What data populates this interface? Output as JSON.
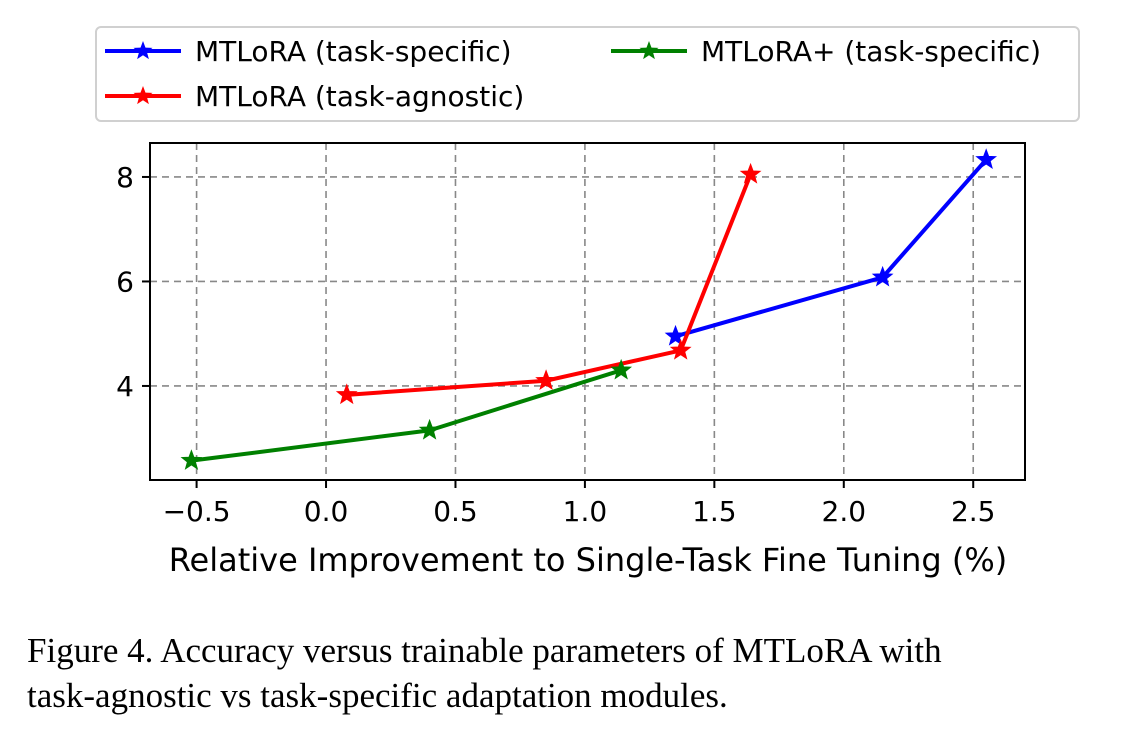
{
  "chart_data": {
    "type": "line",
    "xlabel": "Relative Improvement to Single-Task Fine Tuning (%)",
    "ylabel": "",
    "xlim": [
      -0.68,
      2.7
    ],
    "ylim": [
      2.2,
      8.65
    ],
    "xticks": [
      -0.5,
      0.0,
      0.5,
      1.0,
      1.5,
      2.0,
      2.5
    ],
    "xtick_labels": [
      "−0.5",
      "0.0",
      "0.5",
      "1.0",
      "1.5",
      "2.0",
      "2.5"
    ],
    "yticks": [
      4,
      6,
      8
    ],
    "ytick_labels": [
      "4",
      "6",
      "8"
    ],
    "grid": true,
    "legend_position": "top",
    "series": [
      {
        "name": "MTLoRA (task-specific)",
        "color": "#0000ff",
        "marker": "star",
        "x": [
          1.35,
          2.15,
          2.55
        ],
        "y": [
          4.95,
          6.08,
          8.33
        ]
      },
      {
        "name": "MTLoRA (task-agnostic)",
        "color": "#ff0000",
        "marker": "star",
        "x": [
          0.08,
          0.85,
          1.37,
          1.64
        ],
        "y": [
          3.83,
          4.1,
          4.68,
          8.05
        ]
      },
      {
        "name": "MTLoRA+ (task-specific)",
        "color": "#008000",
        "marker": "star",
        "x": [
          -0.52,
          0.4,
          1.14
        ],
        "y": [
          2.57,
          3.15,
          4.3
        ]
      }
    ]
  },
  "caption": {
    "line1": "Figure 4. Accuracy versus trainable parameters of MTLoRA with",
    "line2": "task-agnostic vs task-specific adaptation modules."
  }
}
